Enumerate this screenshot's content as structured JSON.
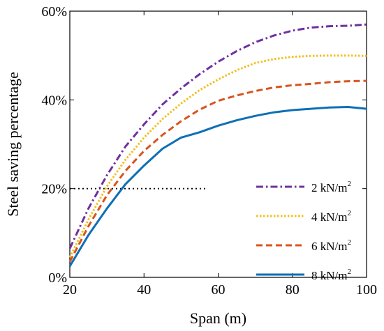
{
  "chart_data": {
    "type": "line",
    "xlabel": "Span (m)",
    "ylabel": "Steel saving percentage",
    "xlim": [
      20,
      100
    ],
    "ylim": [
      0,
      60
    ],
    "xticks": [
      {
        "value": 20,
        "label": "20"
      },
      {
        "value": 40,
        "label": "40"
      },
      {
        "value": 60,
        "label": "60"
      },
      {
        "value": 80,
        "label": "80"
      },
      {
        "value": 100,
        "label": "100"
      }
    ],
    "yticks": [
      {
        "value": 0,
        "label": "0%"
      },
      {
        "value": 20,
        "label": "20%"
      },
      {
        "value": 40,
        "label": "40%"
      },
      {
        "value": 60,
        "label": "60%"
      }
    ],
    "legend_position": "right",
    "series": [
      {
        "name": "2 kN/m",
        "name_superscript": "2",
        "color": "#7030A0",
        "dash": "dashdot",
        "x": [
          20,
          25,
          30,
          35,
          40,
          45,
          50,
          55,
          60,
          65,
          70,
          75,
          80,
          85,
          90,
          95,
          100
        ],
        "y": [
          6.5,
          15.5,
          23,
          29.5,
          34.5,
          39,
          42.6,
          45.8,
          48.6,
          51,
          53,
          54.5,
          55.6,
          56.3,
          56.6,
          56.7,
          57
        ]
      },
      {
        "name": "4 kN/m",
        "name_superscript": "2",
        "color": "#F0C020",
        "dash": "dotted",
        "x": [
          20,
          25,
          30,
          35,
          40,
          45,
          50,
          55,
          60,
          65,
          70,
          75,
          80,
          85,
          90,
          95,
          100
        ],
        "y": [
          4.5,
          13,
          20.5,
          26.5,
          31.5,
          35.7,
          39.2,
          42.2,
          44.6,
          46.7,
          48.3,
          49.2,
          49.7,
          49.9,
          50,
          50,
          49.9
        ]
      },
      {
        "name": "6 kN/m",
        "name_superscript": "2",
        "color": "#D9541E",
        "dash": "dashed",
        "x": [
          20,
          25,
          30,
          35,
          40,
          45,
          50,
          55,
          60,
          65,
          70,
          75,
          80,
          85,
          90,
          95,
          100
        ],
        "y": [
          3.5,
          11.5,
          18.5,
          24,
          28.5,
          32.1,
          35.2,
          37.8,
          39.8,
          41,
          42,
          42.8,
          43.3,
          43.6,
          44,
          44.2,
          44.3
        ]
      },
      {
        "name": "8 kN/m",
        "name_superscript": "2",
        "color": "#0E6FB5",
        "dash": "solid",
        "x": [
          20,
          25,
          30,
          35,
          40,
          45,
          50,
          55,
          60,
          65,
          70,
          75,
          80,
          85,
          90,
          95,
          100
        ],
        "y": [
          2.5,
          9.5,
          15.5,
          21,
          25.2,
          29,
          31.5,
          32.7,
          34.2,
          35.4,
          36.4,
          37.2,
          37.7,
          38,
          38.3,
          38.4,
          38
        ]
      }
    ],
    "reference_line": {
      "y": 20,
      "x_start": 20,
      "x_end": 57,
      "style": "dotted",
      "color": "#000000"
    }
  }
}
